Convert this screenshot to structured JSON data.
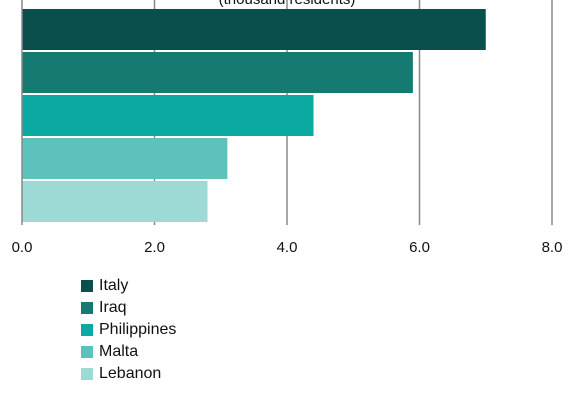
{
  "chart_data": {
    "type": "bar",
    "orientation": "horizontal",
    "subtitle_partial": "(thousand residents)",
    "categories": [
      "Italy",
      "Iraq",
      "Philippines",
      "Malta",
      "Lebanon"
    ],
    "series": [
      {
        "values": [
          7.0,
          5.9,
          4.4,
          3.1,
          2.8
        ]
      }
    ],
    "colors": [
      "#0b4f4c",
      "#147a72",
      "#0aaaa3",
      "#5cc2bb",
      "#9ddad6"
    ],
    "xlim": [
      0,
      8
    ],
    "xticks": [
      "0.0",
      "2.0",
      "4.0",
      "6.0",
      "8.0"
    ],
    "grid": "vertical",
    "legend_position": "bottom-left"
  }
}
